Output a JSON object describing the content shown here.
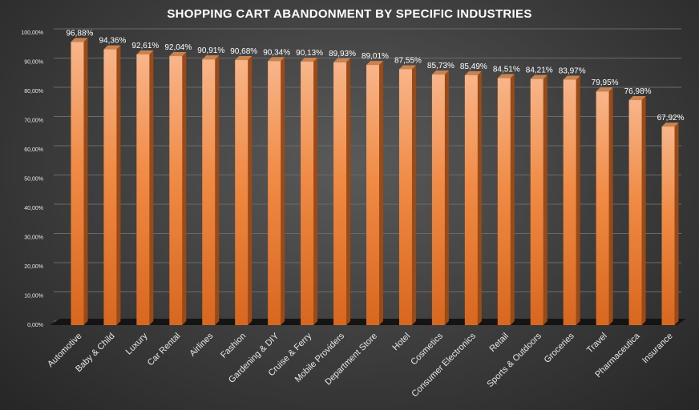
{
  "chart_data": {
    "type": "bar",
    "title": "SHOPPING CART ABANDONMENT BY SPECIFIC INDUSTRIES",
    "xlabel": "",
    "ylabel": "",
    "ylim": [
      0,
      100
    ],
    "grid": true,
    "yticks": [
      0,
      10,
      20,
      30,
      40,
      50,
      60,
      70,
      80,
      90,
      100
    ],
    "ytick_labels": [
      "0,00%",
      "10,00%",
      "20,00%",
      "30,00%",
      "40,00%",
      "50,00%",
      "60,00%",
      "70,00%",
      "80,00%",
      "90,00%",
      "100,00%"
    ],
    "categories": [
      "Automotive",
      "Baby & Child",
      "Luxury",
      "Car Rental",
      "Airlines",
      "Fashion",
      "Gardening & DIY",
      "Cruise & Ferry",
      "Mobile Providers",
      "Department Store",
      "Hotel",
      "Cosmetics",
      "Consumer Electronics",
      "Retail",
      "Sports & Outdoors",
      "Groceries",
      "Travel",
      "Pharmaceutica",
      "Insurance"
    ],
    "values": [
      96.88,
      94.36,
      92.61,
      92.04,
      90.91,
      90.68,
      90.34,
      90.13,
      89.93,
      89.01,
      87.55,
      85.73,
      85.49,
      84.51,
      84.21,
      83.97,
      79.95,
      76.98,
      67.92
    ],
    "data_labels": [
      "96,88%",
      "94,36%",
      "92,61%",
      "92,04%",
      "90,91%",
      "90,68%",
      "90,34%",
      "90,13%",
      "89,93%",
      "89,01%",
      "87,55%",
      "85,73%",
      "85,49%",
      "84,51%",
      "84,21%",
      "83,97%",
      "79,95%",
      "76,98%",
      "67,92%"
    ],
    "colors": {
      "bar_top": "#f8b58a",
      "bar_mid": "#f08a44",
      "bar_bottom": "#d8671f",
      "bar_side": "#9a4a16",
      "bar_cap": "#c9834f",
      "floor": "#141414"
    }
  }
}
